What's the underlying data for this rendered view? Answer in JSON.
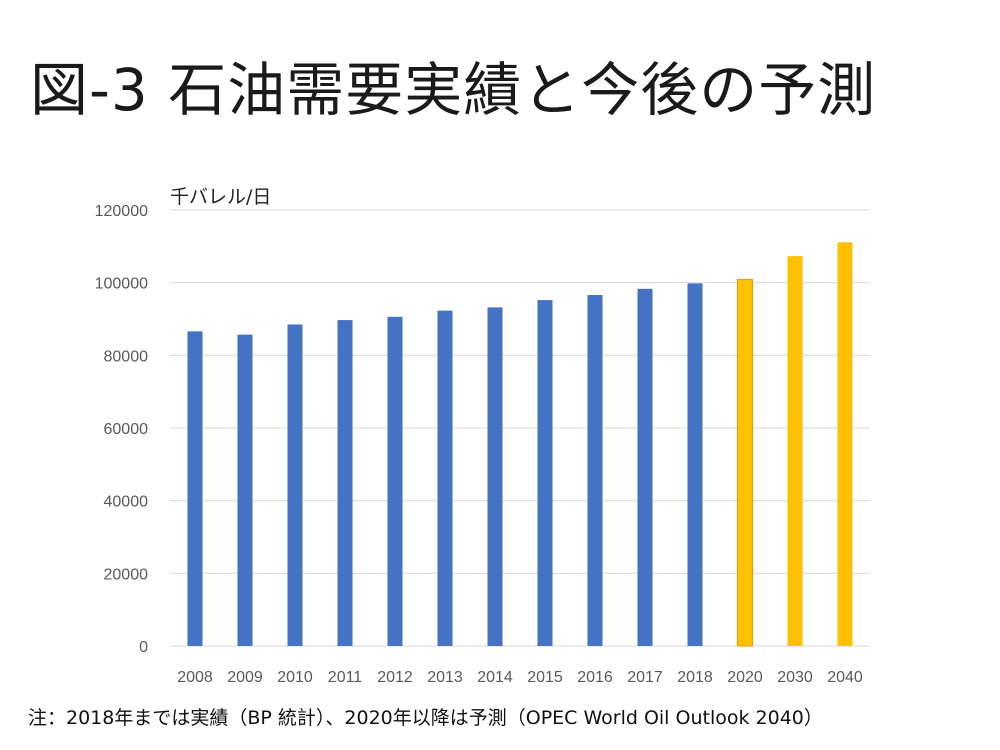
{
  "slide": {
    "title": "図-3 石油需要実績と今後の予測",
    "footnote": "注：2018年までは実績（BP 統計）、2020年以降は予測（OPEC World Oil Outlook 2040）"
  },
  "colors": {
    "actual": "#4472C4",
    "forecast": "#FFC000",
    "forecast_outline": "#ED9B00",
    "grid": "#D9D9D9",
    "tick_text": "#595959"
  },
  "chart_data": {
    "type": "bar",
    "title": "",
    "unit_label": "千バレル/日",
    "xlabel": "",
    "ylabel": "千バレル/日",
    "categories": [
      "2008",
      "2009",
      "2010",
      "2011",
      "2012",
      "2013",
      "2014",
      "2015",
      "2016",
      "2017",
      "2018",
      "2020",
      "2030",
      "2040"
    ],
    "values": [
      86600,
      85700,
      88500,
      89700,
      90600,
      92300,
      93200,
      95200,
      96600,
      98300,
      99800,
      100900,
      107300,
      111100
    ],
    "kinds": [
      "actual",
      "actual",
      "actual",
      "actual",
      "actual",
      "actual",
      "actual",
      "actual",
      "actual",
      "actual",
      "actual",
      "forecast",
      "forecast",
      "forecast"
    ],
    "series": [
      {
        "name": "実績",
        "color": "#4472C4"
      },
      {
        "name": "予測",
        "color": "#FFC000"
      }
    ],
    "ylim": [
      0,
      120000
    ],
    "yticks": [
      "0",
      "20000",
      "40000",
      "60000",
      "80000",
      "100000",
      "120000"
    ],
    "grid": true,
    "legend": "none"
  }
}
